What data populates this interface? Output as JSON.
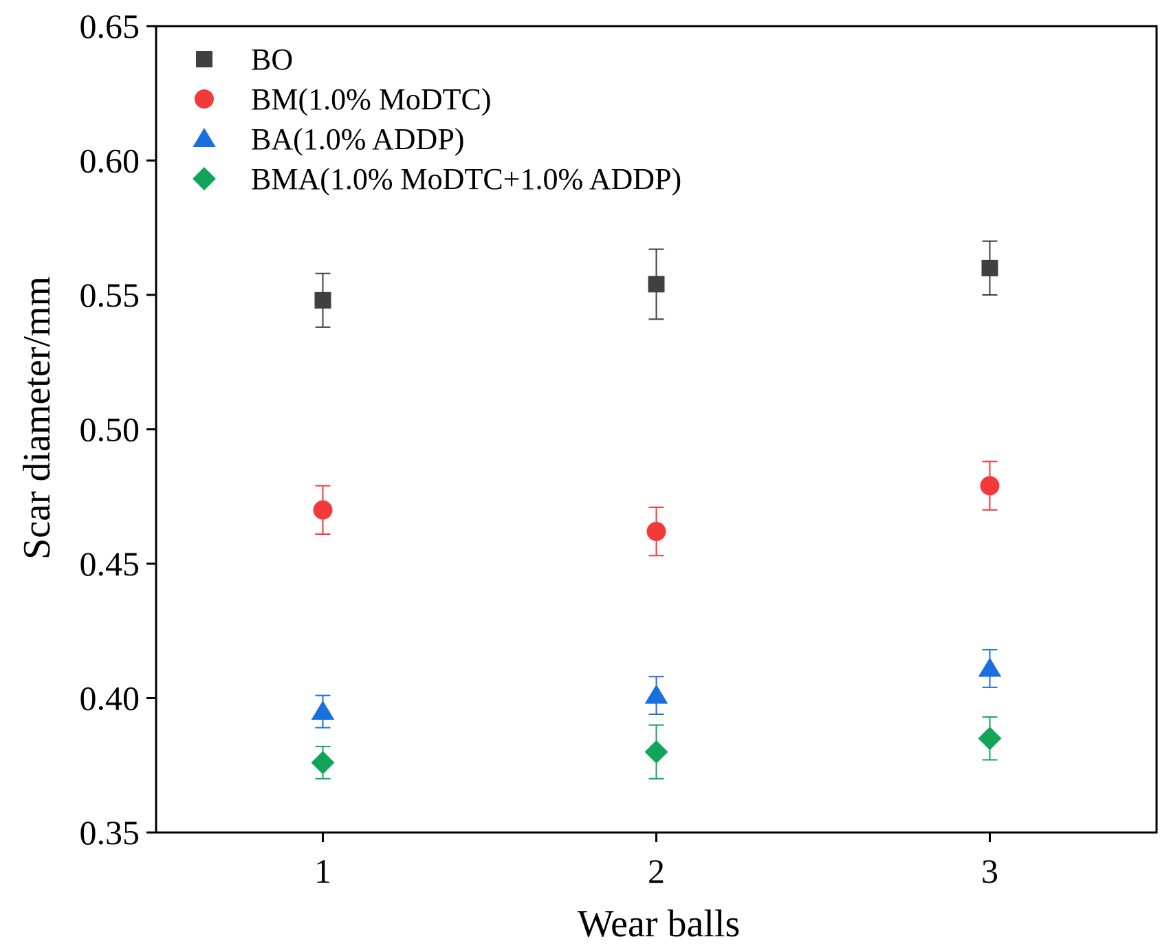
{
  "chart_data": {
    "type": "scatter",
    "title": "",
    "xlabel": "Wear balls",
    "ylabel": "Scar diameter/mm",
    "x": [
      1,
      2,
      3
    ],
    "xlim": [
      0.5,
      3.5
    ],
    "ylim": [
      0.35,
      0.65
    ],
    "xticks": [
      "1",
      "2",
      "3"
    ],
    "yticks": [
      "0.35",
      "0.40",
      "0.45",
      "0.50",
      "0.55",
      "0.60",
      "0.65"
    ],
    "legend_position": "top-left",
    "grid": false,
    "series": [
      {
        "name": "BO",
        "marker": "square",
        "color": "#404040",
        "values": [
          0.548,
          0.554,
          0.56
        ],
        "errors": [
          0.01,
          0.013,
          0.01
        ]
      },
      {
        "name": "BM(1.0% MoDTC)",
        "marker": "circle",
        "color": "#f23a3a",
        "values": [
          0.47,
          0.462,
          0.479
        ],
        "errors": [
          0.009,
          0.009,
          0.009
        ]
      },
      {
        "name": "BA(1.0% ADDP)",
        "marker": "triangle",
        "color": "#1a6fdf",
        "values": [
          0.395,
          0.401,
          0.411
        ],
        "errors": [
          0.006,
          0.007,
          0.007
        ]
      },
      {
        "name": "BMA(1.0% MoDTC+1.0% ADDP)",
        "marker": "diamond",
        "color": "#12a55a",
        "values": [
          0.376,
          0.38,
          0.385
        ],
        "errors": [
          0.006,
          0.01,
          0.008
        ]
      }
    ]
  }
}
